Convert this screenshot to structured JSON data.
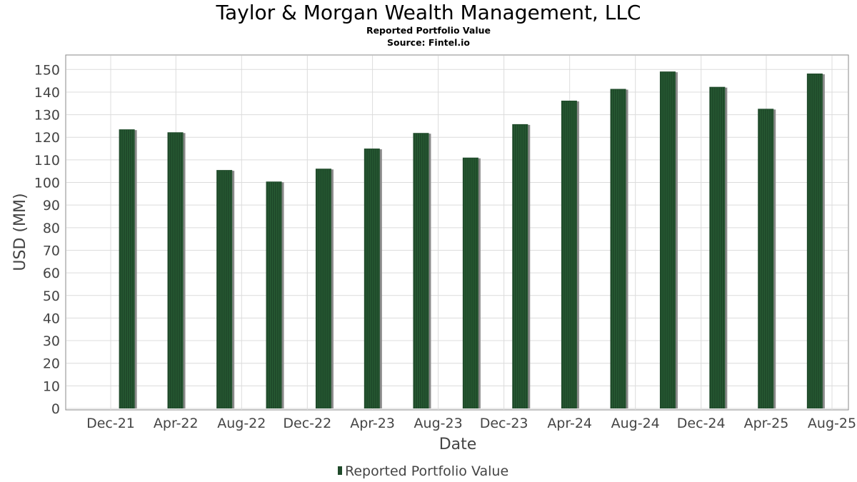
{
  "title": "Taylor & Morgan Wealth Management, LLC",
  "subtitle": "Reported Portfolio Value",
  "source": "Source: Fintel.io",
  "colors": {
    "bar": "#1f4a2a",
    "bar_shadow": "#8a8a8a",
    "grid": "#dcdcdc",
    "plot_border": "#888888"
  },
  "chart_data": {
    "type": "bar",
    "title": "Taylor & Morgan Wealth Management, LLC",
    "subtitle": "Reported Portfolio Value",
    "xlabel": "Date",
    "ylabel": "USD (MM)",
    "ylim": [
      0,
      156
    ],
    "yticks": [
      0,
      10,
      20,
      30,
      40,
      50,
      60,
      70,
      80,
      90,
      100,
      110,
      120,
      130,
      140,
      150
    ],
    "xticks": [
      "Dec-21",
      "Apr-22",
      "Aug-22",
      "Dec-22",
      "Apr-23",
      "Aug-23",
      "Dec-23",
      "Apr-24",
      "Aug-24",
      "Dec-24",
      "Apr-25",
      "Aug-25"
    ],
    "grid": true,
    "legend": "bottom-center",
    "series": [
      {
        "name": "Reported Portfolio Value",
        "dates": [
          "2021-12-31",
          "2022-03-31",
          "2022-06-30",
          "2022-09-30",
          "2022-12-31",
          "2023-03-31",
          "2023-06-30",
          "2023-09-30",
          "2023-12-31",
          "2024-03-31",
          "2024-06-30",
          "2024-09-30",
          "2024-12-31",
          "2025-03-31",
          "2025-06-30"
        ],
        "values": [
          123.5,
          122.2,
          105.5,
          100.4,
          106.1,
          115.0,
          121.9,
          111.0,
          125.8,
          136.2,
          141.4,
          149.1,
          142.3,
          132.6,
          148.2
        ]
      }
    ]
  }
}
